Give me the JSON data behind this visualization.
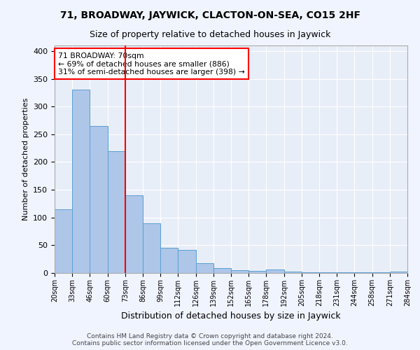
{
  "title1": "71, BROADWAY, JAYWICK, CLACTON-ON-SEA, CO15 2HF",
  "title2": "Size of property relative to detached houses in Jaywick",
  "xlabel": "Distribution of detached houses by size in Jaywick",
  "ylabel": "Number of detached properties",
  "bar_values": [
    115,
    330,
    265,
    220,
    140,
    90,
    45,
    42,
    18,
    9,
    5,
    4,
    6,
    2,
    1,
    1,
    1,
    1,
    1,
    3
  ],
  "bar_labels": [
    "20sqm",
    "33sqm",
    "46sqm",
    "60sqm",
    "73sqm",
    "86sqm",
    "99sqm",
    "112sqm",
    "126sqm",
    "139sqm",
    "152sqm",
    "165sqm",
    "178sqm",
    "192sqm",
    "205sqm",
    "218sqm",
    "231sqm",
    "244sqm",
    "258sqm",
    "271sqm",
    "284sqm"
  ],
  "bar_color": "#aec6e8",
  "bar_edge_color": "#5a9fd4",
  "vline_x": 4,
  "vline_color": "red",
  "annotation_text": "71 BROADWAY: 70sqm\n← 69% of detached houses are smaller (886)\n31% of semi-detached houses are larger (398) →",
  "annotation_box_color": "white",
  "annotation_box_edge": "red",
  "ylim": [
    0,
    410
  ],
  "yticks": [
    0,
    50,
    100,
    150,
    200,
    250,
    300,
    350,
    400
  ],
  "footer": "Contains HM Land Registry data © Crown copyright and database right 2024.\nContains public sector information licensed under the Open Government Licence v3.0.",
  "bg_color": "#f0f4ff",
  "plot_bg_color": "#e8eef8",
  "title1_fontsize": 10,
  "title2_fontsize": 9
}
